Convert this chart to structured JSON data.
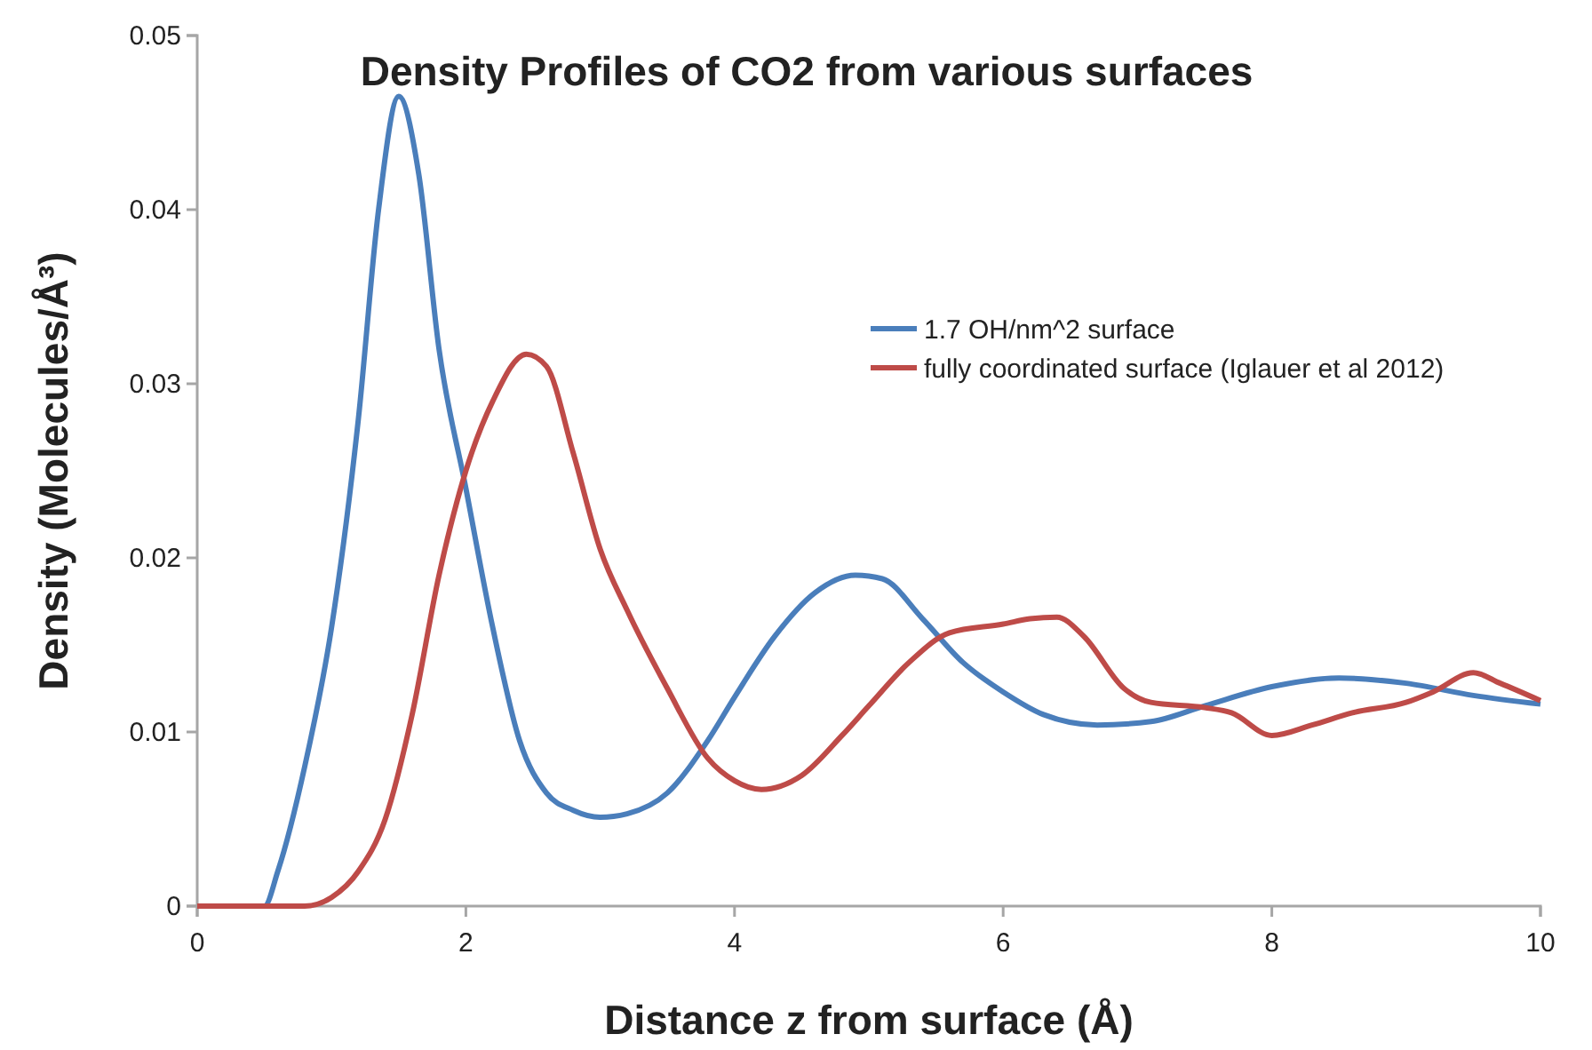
{
  "chart_data": {
    "type": "line",
    "title": "Density Profiles of CO2 from various surfaces",
    "xlabel": "Distance z from surface (Å)",
    "ylabel": "Density (Molecules/Å³)",
    "xlim": [
      0,
      10
    ],
    "xticks": [
      0,
      2,
      4,
      6,
      8,
      10
    ],
    "ylim": [
      0,
      0.05
    ],
    "yticks": [
      0,
      0.01,
      0.02,
      0.03,
      0.04,
      0.05
    ],
    "legend": "top right",
    "series": [
      {
        "name": "1.7 OH/nm^2 surface",
        "color": "#4a7ebb",
        "x": [
          0,
          0.5,
          0.6,
          0.8,
          1.0,
          1.2,
          1.35,
          1.5,
          1.65,
          1.8,
          2.0,
          2.2,
          2.4,
          2.6,
          2.8,
          3.0,
          3.2,
          3.5,
          3.8,
          4.0,
          4.3,
          4.6,
          4.9,
          5.1,
          5.4,
          5.7,
          6.0,
          6.3,
          6.7,
          7.1,
          7.5,
          8.0,
          8.5,
          9.0,
          9.5,
          10
        ],
        "values": [
          0,
          0,
          0.002,
          0.008,
          0.016,
          0.028,
          0.04,
          0.0465,
          0.042,
          0.032,
          0.024,
          0.016,
          0.0095,
          0.0065,
          0.0055,
          0.0051,
          0.0053,
          0.0065,
          0.0095,
          0.012,
          0.0155,
          0.018,
          0.019,
          0.0188,
          0.0165,
          0.014,
          0.0123,
          0.011,
          0.0104,
          0.0106,
          0.0115,
          0.0126,
          0.0131,
          0.0128,
          0.0121,
          0.0116
        ]
      },
      {
        "name": "fully coordinated surface (Iglauer et al 2012)",
        "color": "#be4b48",
        "x": [
          0,
          0.8,
          1.0,
          1.2,
          1.4,
          1.6,
          1.8,
          2.0,
          2.2,
          2.45,
          2.6,
          2.8,
          3.0,
          3.2,
          3.5,
          3.8,
          4.0,
          4.2,
          4.5,
          4.8,
          5.0,
          5.3,
          5.6,
          6.0,
          6.2,
          6.4,
          6.6,
          6.9,
          7.1,
          7.5,
          7.7,
          8.0,
          8.3,
          8.6,
          9.0,
          9.2,
          9.5,
          9.7,
          10
        ],
        "values": [
          0,
          0,
          0.0005,
          0.002,
          0.005,
          0.011,
          0.019,
          0.025,
          0.029,
          0.0317,
          0.031,
          0.026,
          0.0205,
          0.017,
          0.0125,
          0.0085,
          0.0072,
          0.0067,
          0.0075,
          0.0098,
          0.0115,
          0.014,
          0.0157,
          0.0162,
          0.0165,
          0.0166,
          0.0155,
          0.0125,
          0.0117,
          0.0114,
          0.0111,
          0.0098,
          0.0104,
          0.0111,
          0.0117,
          0.0123,
          0.0134,
          0.0128,
          0.0118
        ]
      }
    ]
  }
}
